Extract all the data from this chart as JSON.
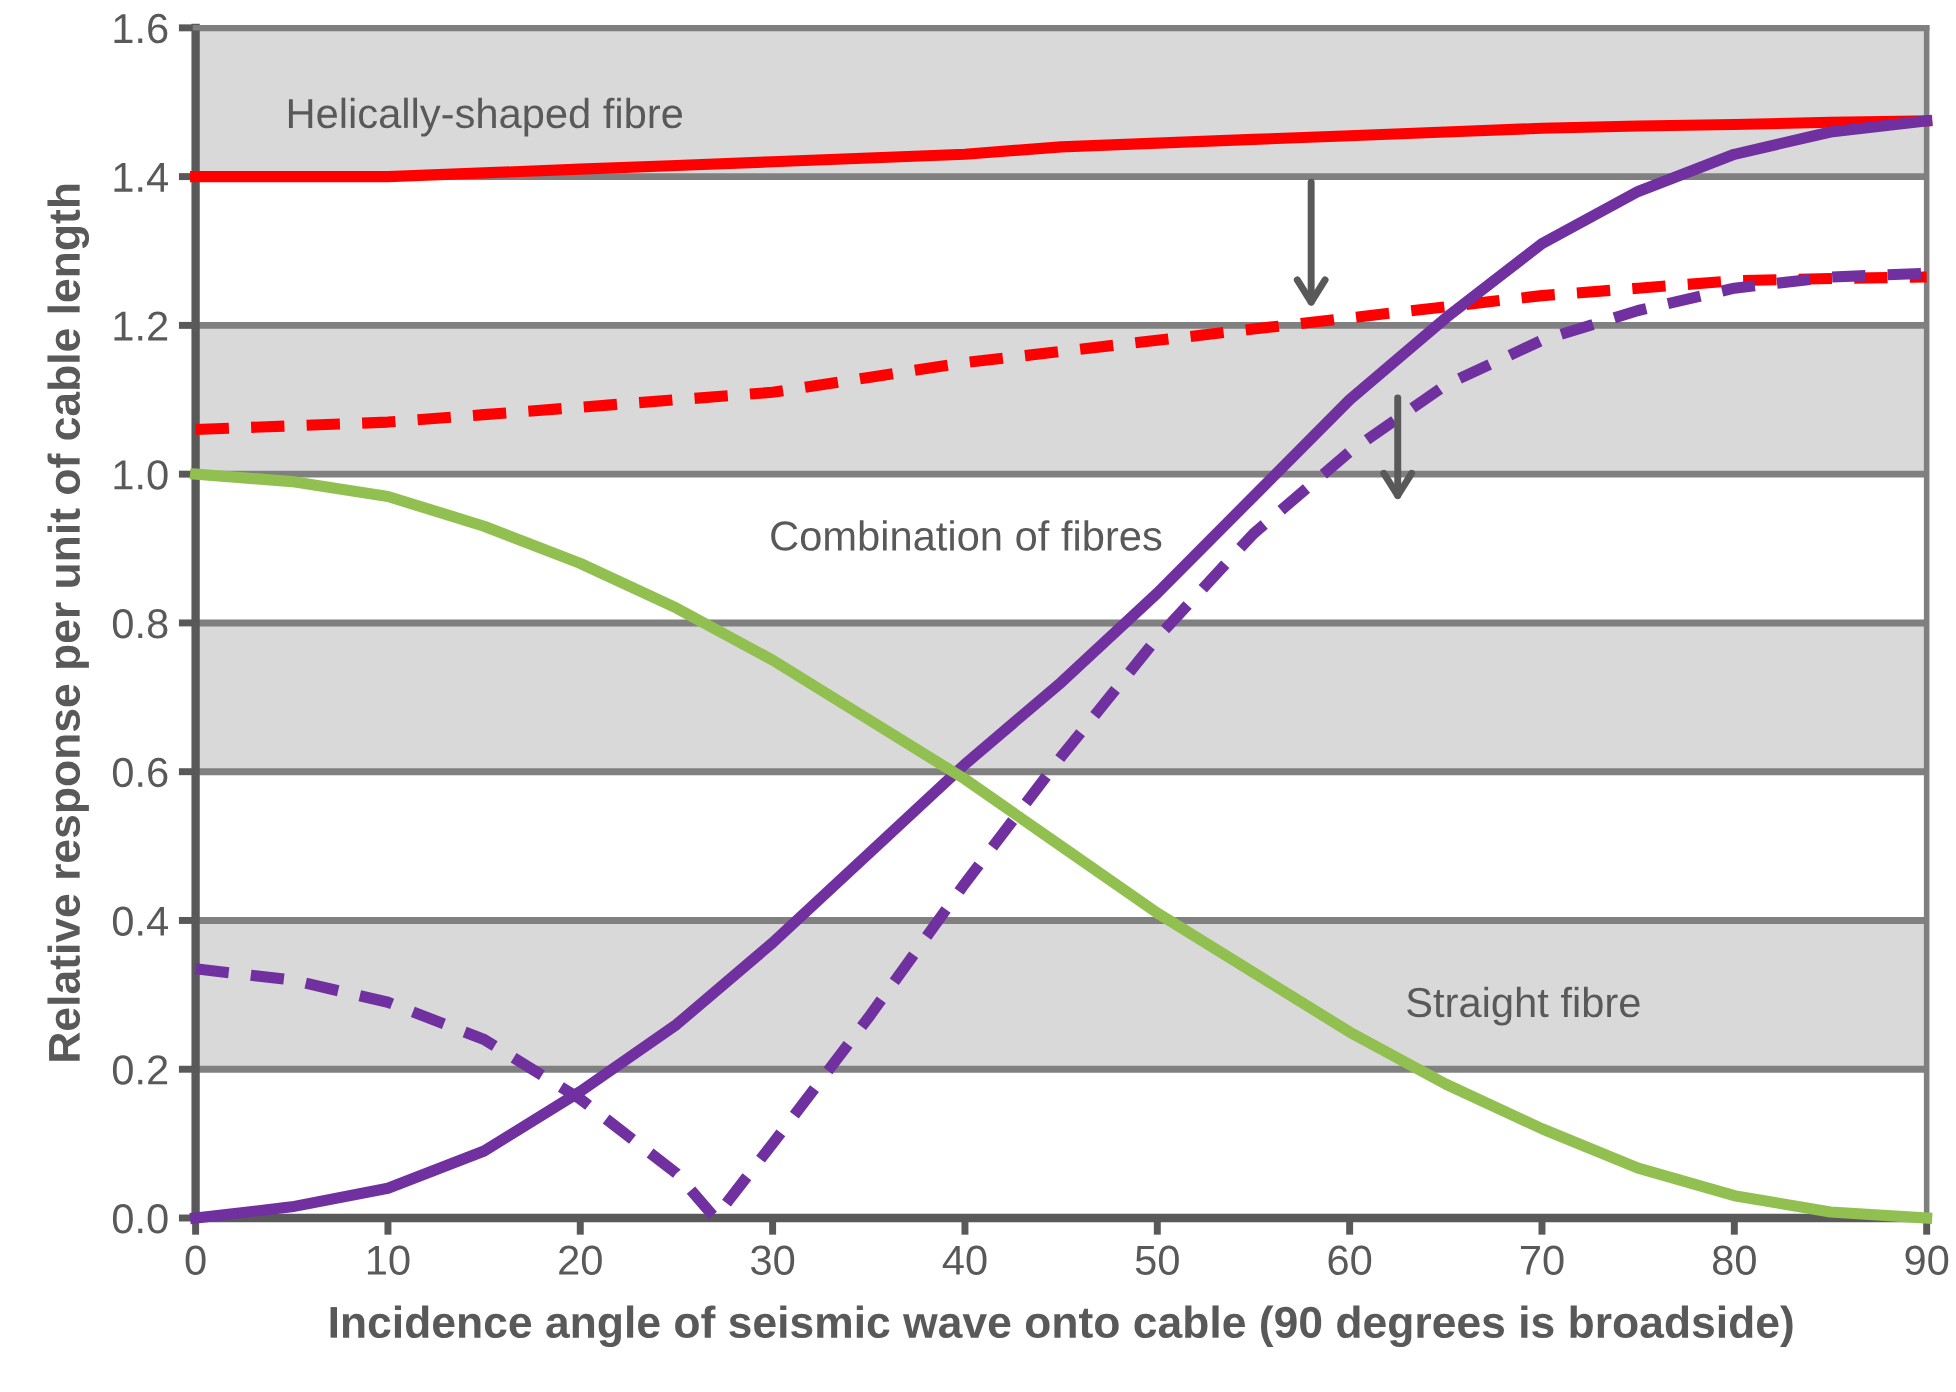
{
  "chart_data": {
    "type": "line",
    "xlabel": "Incidence angle of seismic wave onto cable (90 degrees is broadside)",
    "ylabel": "Relative response per unit of cable length",
    "xlim": [
      0,
      90
    ],
    "ylim": [
      0,
      1.6
    ],
    "xticks": [
      0,
      10,
      20,
      30,
      40,
      50,
      60,
      70,
      80,
      90
    ],
    "yticks": [
      {
        "value": 0,
        "label": "0.0"
      },
      {
        "value": 0.2,
        "label": "0.2"
      },
      {
        "value": 0.4,
        "label": "0.4"
      },
      {
        "value": 0.6,
        "label": "0.6"
      },
      {
        "value": 0.8,
        "label": "0.8"
      },
      {
        "value": 1.0,
        "label": "1.0"
      },
      {
        "value": 1.2,
        "label": "1.2"
      },
      {
        "value": 1.4,
        "label": "1.4"
      },
      {
        "value": 1.6,
        "label": "1.6"
      }
    ],
    "grid": "y",
    "marker": "none",
    "bands": [
      {
        "axis": "y",
        "from": 0.2,
        "to": 0.4,
        "color": "#d9d9d9"
      },
      {
        "axis": "y",
        "from": 0.6,
        "to": 0.8,
        "color": "#d9d9d9"
      },
      {
        "axis": "y",
        "from": 1.0,
        "to": 1.2,
        "color": "#d9d9d9"
      },
      {
        "axis": "y",
        "from": 1.4,
        "to": 1.6,
        "color": "#d9d9d9"
      }
    ],
    "x": [
      0,
      5,
      10,
      15,
      20,
      25,
      30,
      35,
      40,
      45,
      50,
      55,
      60,
      65,
      70,
      75,
      80,
      85,
      90
    ],
    "series": [
      {
        "color": "#ff0000",
        "line_style": "solid",
        "values": [
          1.4,
          1.4,
          1.4,
          1.405,
          1.41,
          1.415,
          1.42,
          1.425,
          1.43,
          1.44,
          1.445,
          1.45,
          1.455,
          1.46,
          1.465,
          1.468,
          1.47,
          1.473,
          1.475
        ]
      },
      {
        "color": "#ff0000",
        "line_style": "dashed",
        "values": [
          1.06,
          1.065,
          1.07,
          1.08,
          1.09,
          1.1,
          1.11,
          1.13,
          1.15,
          1.165,
          1.18,
          1.195,
          1.21,
          1.225,
          1.24,
          1.25,
          1.26,
          1.263,
          1.265
        ]
      },
      {
        "color": "#7030a0",
        "line_style": "solid",
        "values": [
          0.0,
          0.015,
          0.04,
          0.09,
          0.17,
          0.26,
          0.37,
          0.49,
          0.61,
          0.72,
          0.84,
          0.97,
          1.1,
          1.21,
          1.31,
          1.38,
          1.43,
          1.46,
          1.475
        ]
      },
      {
        "color": "#7030a0",
        "line_style": "dashed",
        "x": [
          0,
          5,
          10,
          15,
          20,
          25,
          27,
          30,
          35,
          40,
          45,
          50,
          55,
          60,
          65,
          70,
          75,
          80,
          85,
          90
        ],
        "values": [
          0.335,
          0.32,
          0.29,
          0.24,
          0.16,
          0.06,
          0.0,
          0.1,
          0.27,
          0.45,
          0.62,
          0.78,
          0.92,
          1.03,
          1.12,
          1.18,
          1.22,
          1.25,
          1.265,
          1.27
        ]
      },
      {
        "color": "#92c050",
        "line_style": "solid",
        "values": [
          1.0,
          0.99,
          0.97,
          0.93,
          0.88,
          0.82,
          0.75,
          0.67,
          0.59,
          0.5,
          0.41,
          0.33,
          0.25,
          0.18,
          0.12,
          0.067,
          0.03,
          0.008,
          0.0
        ]
      }
    ],
    "annotations": [
      "Helically-shaped fibre",
      "Combination of fibres",
      "Straight fibre"
    ]
  }
}
